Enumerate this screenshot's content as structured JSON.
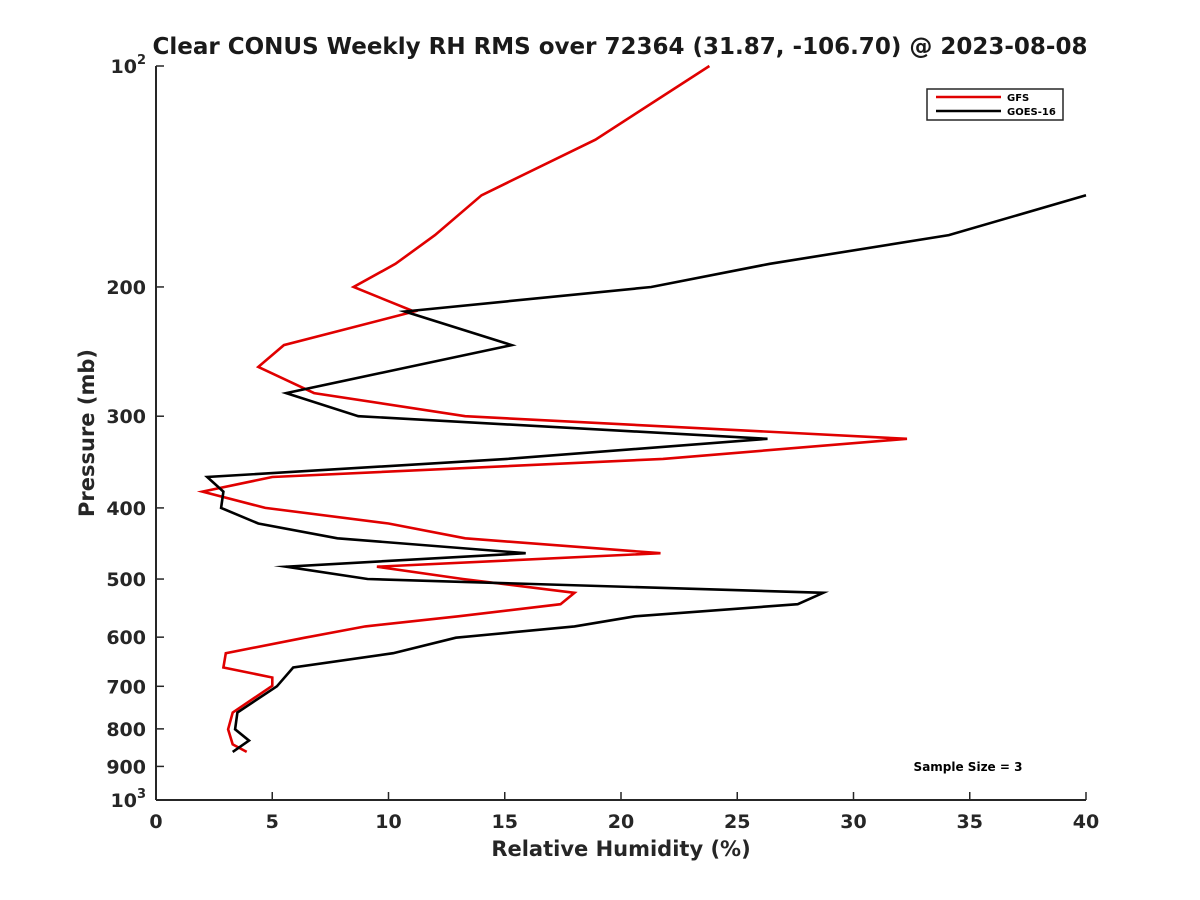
{
  "chart_data": {
    "type": "line",
    "title": "Clear CONUS Weekly RH RMS over 72364 (31.87, -106.70) @ 2023-08-08",
    "xlabel": "Relative Humidity (%)",
    "ylabel": "Pressure (mb)",
    "xlim": [
      0,
      40
    ],
    "ylim": [
      100,
      1000
    ],
    "yscale": "log",
    "y_reversed": true,
    "x_ticks": [
      "0",
      "5",
      "10",
      "15",
      "20",
      "25",
      "30",
      "35",
      "40"
    ],
    "y_ticks": [
      {
        "value": 100,
        "label": "10",
        "sup": "2"
      },
      {
        "value": 200,
        "label": "200"
      },
      {
        "value": 300,
        "label": "300"
      },
      {
        "value": 400,
        "label": "400"
      },
      {
        "value": 500,
        "label": "500"
      },
      {
        "value": 600,
        "label": "600"
      },
      {
        "value": 700,
        "label": "700"
      },
      {
        "value": 800,
        "label": "800"
      },
      {
        "value": 900,
        "label": "900"
      },
      {
        "value": 1000,
        "label": "10",
        "sup": "3"
      }
    ],
    "legend_position": "top-right",
    "grid": false,
    "series": [
      {
        "name": "GFS",
        "color": "#e00000",
        "points": [
          [
            23.8,
            100
          ],
          [
            18.9,
            126
          ],
          [
            14.0,
            150
          ],
          [
            12.0,
            170
          ],
          [
            10.3,
            186
          ],
          [
            8.5,
            200
          ],
          [
            11.1,
            216
          ],
          [
            5.5,
            240
          ],
          [
            4.4,
            257
          ],
          [
            6.8,
            279
          ],
          [
            13.3,
            300
          ],
          [
            32.3,
            322
          ],
          [
            21.8,
            343
          ],
          [
            5.0,
            363
          ],
          [
            2.0,
            380
          ],
          [
            4.7,
            400
          ],
          [
            10.0,
            420
          ],
          [
            13.3,
            440
          ],
          [
            21.7,
            461
          ],
          [
            9.5,
            481
          ],
          [
            13.2,
            500
          ],
          [
            18.0,
            522
          ],
          [
            17.4,
            541
          ],
          [
            13.0,
            562
          ],
          [
            9.0,
            580
          ],
          [
            6.4,
            601
          ],
          [
            3.0,
            631
          ],
          [
            2.9,
            660
          ],
          [
            5.0,
            681
          ],
          [
            5.0,
            699
          ],
          [
            3.3,
            760
          ],
          [
            3.1,
            801
          ],
          [
            3.3,
            840
          ],
          [
            3.9,
            860
          ]
        ]
      },
      {
        "name": "GOES-16",
        "color": "#000000",
        "points": [
          [
            40.0,
            150
          ],
          [
            34.1,
            170
          ],
          [
            26.4,
            186
          ],
          [
            21.3,
            200
          ],
          [
            10.7,
            216
          ],
          [
            15.3,
            240
          ],
          [
            10.9,
            257
          ],
          [
            5.6,
            279
          ],
          [
            8.7,
            300
          ],
          [
            26.3,
            322
          ],
          [
            15.1,
            343
          ],
          [
            2.2,
            363
          ],
          [
            2.9,
            380
          ],
          [
            2.8,
            400
          ],
          [
            4.4,
            420
          ],
          [
            7.8,
            440
          ],
          [
            15.9,
            461
          ],
          [
            5.6,
            481
          ],
          [
            9.1,
            500
          ],
          [
            28.7,
            522
          ],
          [
            27.6,
            541
          ],
          [
            20.6,
            562
          ],
          [
            18.0,
            580
          ],
          [
            12.9,
            601
          ],
          [
            10.2,
            631
          ],
          [
            5.9,
            660
          ],
          [
            5.2,
            700
          ],
          [
            3.5,
            760
          ],
          [
            3.4,
            801
          ],
          [
            4.0,
            830
          ],
          [
            3.3,
            860
          ]
        ]
      }
    ],
    "annotation": "Sample Size = 3"
  }
}
